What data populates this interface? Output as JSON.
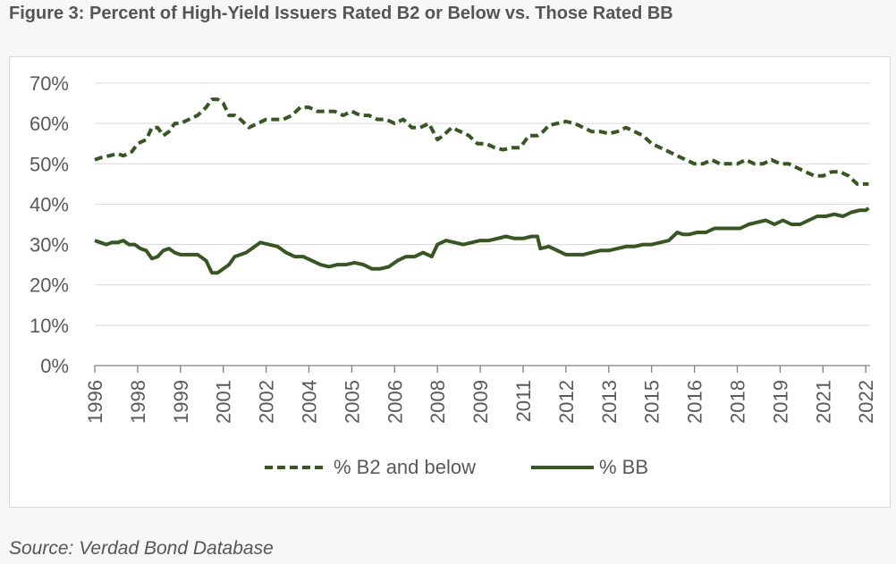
{
  "figure_title": "Figure 3: Percent of High-Yield Issuers Rated B2 or Below vs. Those Rated BB",
  "source_note": "Source: Verdad Bond Database",
  "colors": {
    "series_line": "#375623",
    "grid": "#d9d9d9",
    "axis": "#7f7f7f",
    "text": "#595959"
  },
  "chart_data": {
    "type": "line",
    "title": "",
    "xlabel": "",
    "ylabel": "",
    "ylim": [
      0,
      70
    ],
    "xlim": [
      1996.0,
      2023.15
    ],
    "y_ticks": [
      "0%",
      "10%",
      "20%",
      "30%",
      "40%",
      "50%",
      "60%",
      "70%"
    ],
    "y_tick_values": [
      0,
      10,
      20,
      30,
      40,
      50,
      60,
      70
    ],
    "x_ticks": [
      {
        "label": "1996",
        "value": 1996.0
      },
      {
        "label": "1998",
        "value": 1997.5
      },
      {
        "label": "1999",
        "value": 1999.0
      },
      {
        "label": "2001",
        "value": 2000.5
      },
      {
        "label": "2002",
        "value": 2002.0
      },
      {
        "label": "2004",
        "value": 2003.5
      },
      {
        "label": "2005",
        "value": 2005.0
      },
      {
        "label": "2006",
        "value": 2006.5
      },
      {
        "label": "2008",
        "value": 2008.0
      },
      {
        "label": "2009",
        "value": 2009.5
      },
      {
        "label": "2011",
        "value": 2011.0
      },
      {
        "label": "2012",
        "value": 2012.5
      },
      {
        "label": "2013",
        "value": 2014.0
      },
      {
        "label": "2015",
        "value": 2015.5
      },
      {
        "label": "2016",
        "value": 2017.0
      },
      {
        "label": "2018",
        "value": 2018.5
      },
      {
        "label": "2019",
        "value": 2020.0
      },
      {
        "label": "2021",
        "value": 2021.5
      },
      {
        "label": "2022",
        "value": 2023.0
      }
    ],
    "grid": true,
    "legend_position": "bottom-center",
    "series": [
      {
        "name": "% B2 and below",
        "style": "dashed",
        "x": [
          1996.0,
          1996.2,
          1996.5,
          1996.8,
          1997.0,
          1997.3,
          1997.5,
          1997.8,
          1998.0,
          1998.2,
          1998.4,
          1998.6,
          1998.8,
          1999.0,
          1999.3,
          1999.6,
          1999.9,
          2000.1,
          2000.3,
          2000.5,
          2000.7,
          2000.9,
          2001.1,
          2001.4,
          2001.7,
          2002.0,
          2002.3,
          2002.6,
          2002.9,
          2003.2,
          2003.5,
          2003.8,
          2004.1,
          2004.4,
          2004.7,
          2005.0,
          2005.3,
          2005.6,
          2005.9,
          2006.2,
          2006.5,
          2006.8,
          2007.1,
          2007.4,
          2007.7,
          2008.0,
          2008.2,
          2008.5,
          2008.8,
          2009.1,
          2009.4,
          2009.7,
          2010.0,
          2010.3,
          2010.6,
          2010.9,
          2011.2,
          2011.5,
          2011.7,
          2011.9,
          2012.2,
          2012.5,
          2012.8,
          2013.1,
          2013.4,
          2013.7,
          2014.0,
          2014.3,
          2014.6,
          2014.9,
          2015.2,
          2015.5,
          2015.8,
          2016.1,
          2016.4,
          2016.7,
          2017.0,
          2017.3,
          2017.6,
          2017.9,
          2018.2,
          2018.5,
          2018.8,
          2019.1,
          2019.4,
          2019.7,
          2020.0,
          2020.3,
          2020.6,
          2020.9,
          2021.2,
          2021.5,
          2021.8,
          2022.1,
          2022.4,
          2022.7,
          2023.0,
          2023.1
        ],
        "values": [
          51,
          51.5,
          52,
          52.5,
          52,
          53,
          55,
          56,
          59,
          59,
          57,
          58,
          60,
          60,
          61,
          62,
          64,
          66,
          66,
          65,
          62,
          62,
          61,
          59,
          60,
          61,
          61,
          61,
          62,
          64,
          64,
          63,
          63,
          63,
          62,
          63,
          62,
          62,
          61,
          61,
          60,
          61,
          59,
          59,
          60,
          56,
          57,
          59,
          58,
          57,
          55,
          55,
          54,
          53.5,
          54,
          54,
          57,
          57,
          58,
          59.5,
          60,
          60.5,
          60,
          59,
          58,
          58,
          57.5,
          58,
          59,
          58,
          57,
          55,
          54,
          53,
          52,
          51,
          50,
          50,
          51,
          50,
          50,
          50,
          51,
          50,
          50,
          51,
          50,
          50,
          49,
          48,
          47,
          47,
          48,
          48,
          47,
          45,
          45,
          45
        ]
      },
      {
        "name": "% BB",
        "style": "solid",
        "x": [
          1996.0,
          1996.2,
          1996.4,
          1996.6,
          1996.8,
          1997.0,
          1997.2,
          1997.4,
          1997.6,
          1997.8,
          1998.0,
          1998.2,
          1998.4,
          1998.6,
          1998.8,
          1999.0,
          1999.3,
          1999.6,
          1999.9,
          2000.1,
          2000.3,
          2000.5,
          2000.7,
          2000.9,
          2001.1,
          2001.3,
          2001.5,
          2001.8,
          2002.1,
          2002.4,
          2002.7,
          2003.0,
          2003.3,
          2003.6,
          2003.9,
          2004.2,
          2004.5,
          2004.8,
          2005.1,
          2005.4,
          2005.7,
          2006.0,
          2006.3,
          2006.6,
          2006.9,
          2007.2,
          2007.5,
          2007.8,
          2008.0,
          2008.3,
          2008.6,
          2008.9,
          2009.2,
          2009.5,
          2009.8,
          2010.1,
          2010.4,
          2010.7,
          2011.0,
          2011.3,
          2011.5,
          2011.6,
          2011.9,
          2012.2,
          2012.5,
          2012.8,
          2013.1,
          2013.4,
          2013.7,
          2014.0,
          2014.3,
          2014.6,
          2014.9,
          2015.2,
          2015.5,
          2015.8,
          2016.1,
          2016.4,
          2016.6,
          2016.8,
          2017.1,
          2017.4,
          2017.7,
          2018.0,
          2018.3,
          2018.6,
          2018.9,
          2019.2,
          2019.5,
          2019.8,
          2020.1,
          2020.4,
          2020.7,
          2021.0,
          2021.3,
          2021.6,
          2021.9,
          2022.2,
          2022.5,
          2022.8,
          2023.0,
          2023.1
        ],
        "values": [
          31,
          30.5,
          30,
          30.5,
          30.5,
          31,
          30,
          30,
          29,
          28.5,
          26.5,
          27,
          28.5,
          29,
          28,
          27.5,
          27.5,
          27.5,
          26,
          23,
          23,
          24,
          25,
          27,
          27.5,
          28,
          29,
          30.5,
          30,
          29.5,
          28,
          27,
          27,
          26,
          25,
          24.5,
          25,
          25,
          25.5,
          25,
          24,
          24,
          24.5,
          26,
          27,
          27,
          28,
          27,
          30,
          31,
          30.5,
          30,
          30.5,
          31,
          31,
          31.5,
          32,
          31.5,
          31.5,
          32,
          32,
          29,
          29.5,
          28.5,
          27.5,
          27.5,
          27.5,
          28,
          28.5,
          28.5,
          29,
          29.5,
          29.5,
          30,
          30,
          30.5,
          31,
          33,
          32.5,
          32.5,
          33,
          33,
          34,
          34,
          34,
          34,
          35,
          35.5,
          36,
          35,
          36,
          35,
          35,
          36,
          37,
          37,
          37.5,
          37,
          38,
          38.5,
          38.5,
          39
        ]
      }
    ]
  }
}
